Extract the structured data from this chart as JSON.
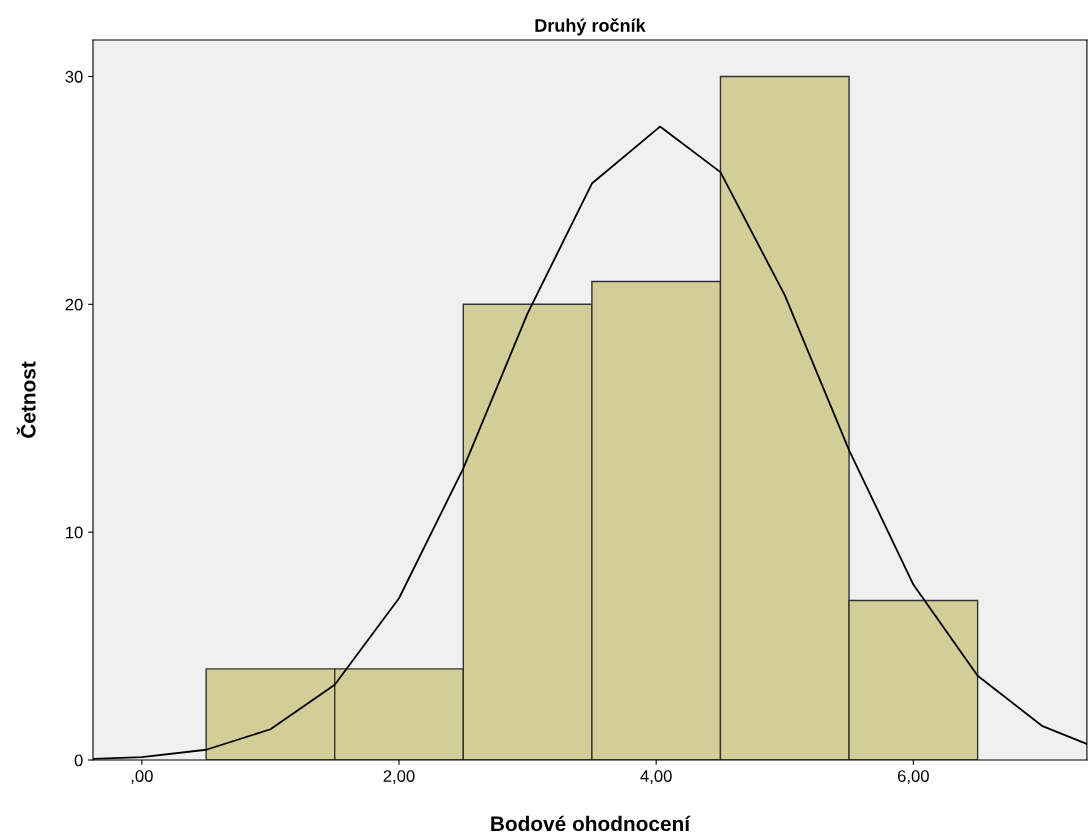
{
  "chart_data": {
    "type": "histogram",
    "title": "Druhý ročník",
    "xlabel": "Bodové ohodnocení",
    "ylabel": "Četnost",
    "bins": [
      0.5,
      1.5,
      2.5,
      3.5,
      4.5,
      5.5,
      6.5
    ],
    "values": [
      4,
      4,
      20,
      21,
      30,
      7
    ],
    "color": "#d3ce97",
    "series": [
      {
        "type": "line",
        "color": "#000000",
        "x": [
          -0.38,
          0,
          0.5,
          1.0,
          1.5,
          2.0,
          2.5,
          3.0,
          3.5,
          4.03,
          4.5,
          5.0,
          5.5,
          6.0,
          6.5,
          7.0,
          7.35
        ],
        "values": [
          0.05,
          0.13,
          0.45,
          1.35,
          3.3,
          7.1,
          12.8,
          19.6,
          25.3,
          27.8,
          25.8,
          20.4,
          13.6,
          7.7,
          3.7,
          1.5,
          0.7
        ]
      }
    ],
    "xlim": [
      -0.38,
      7.35
    ],
    "ylim": [
      0,
      31.6
    ],
    "xticks": [
      {
        "value": 0,
        "label": ",00"
      },
      {
        "value": 2,
        "label": "2,00"
      },
      {
        "value": 4,
        "label": "4,00"
      },
      {
        "value": 6,
        "label": "6,00"
      }
    ],
    "yticks": [
      0,
      10,
      20,
      30
    ],
    "grid": false,
    "legend": false
  }
}
